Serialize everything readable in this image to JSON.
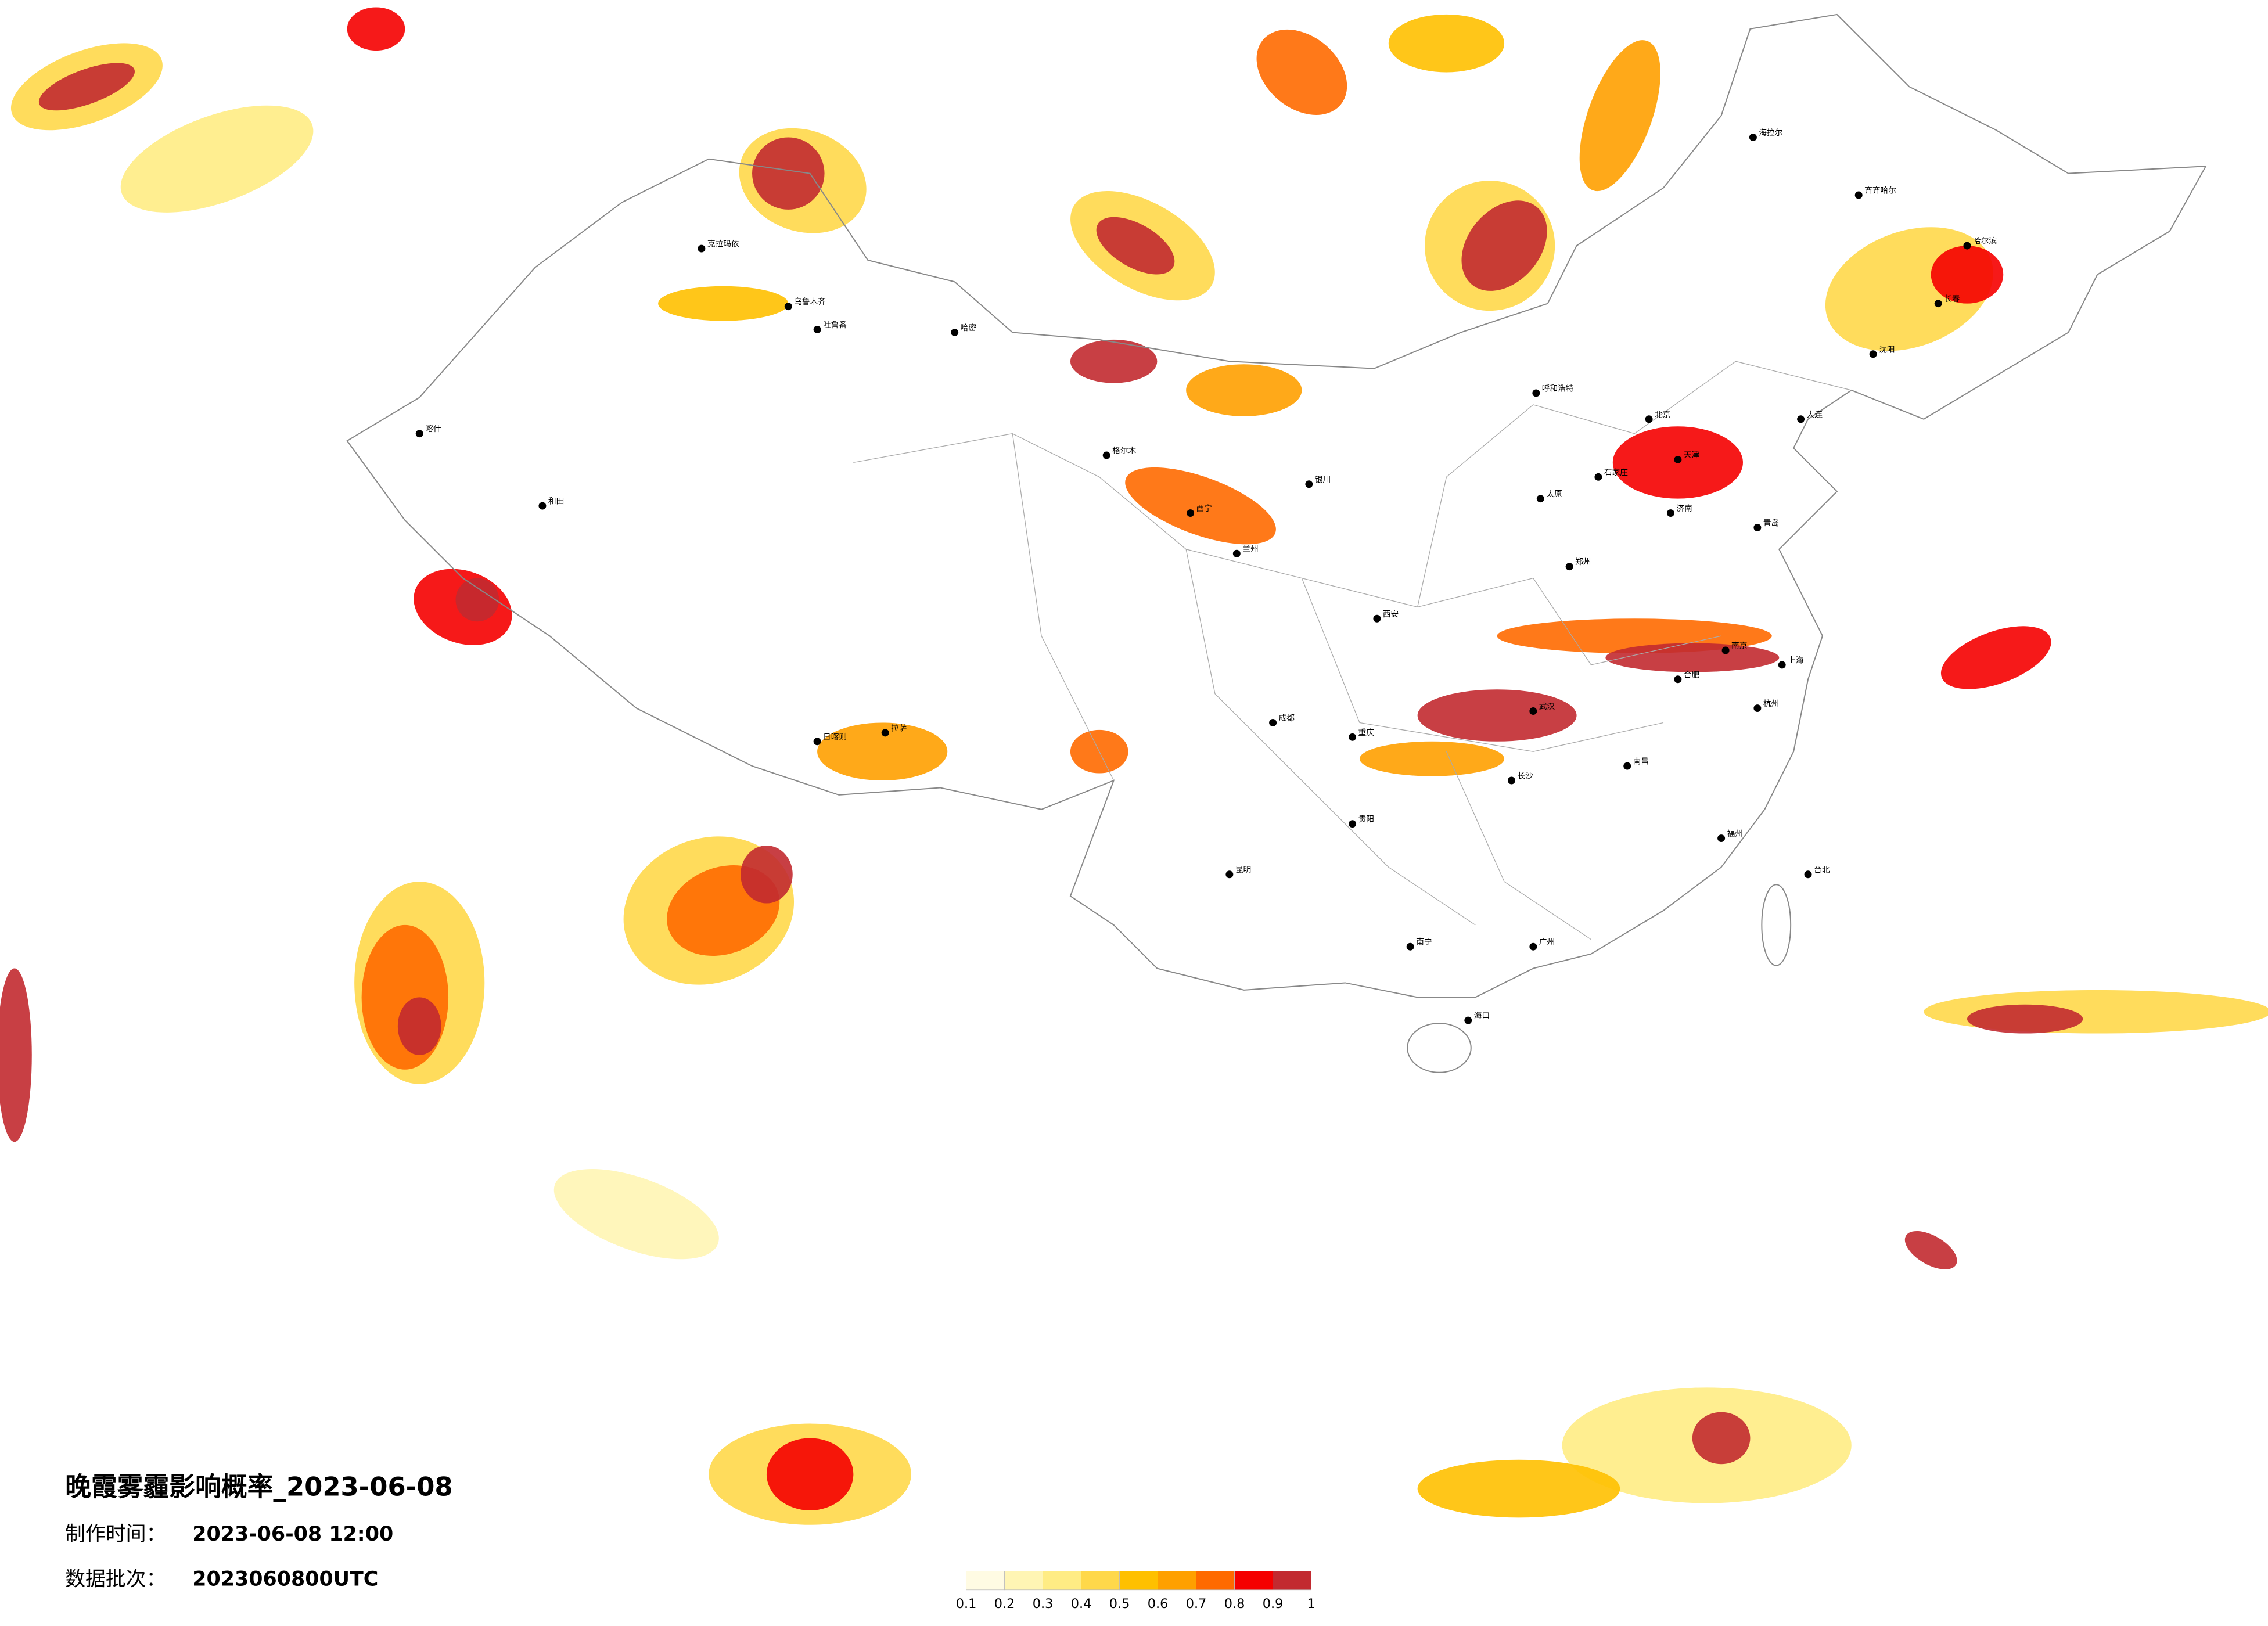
{
  "title": "晚霞雾霾影响概率_2023-06-08",
  "info": [
    {
      "label": "制作时间：",
      "value": "2023-06-08 12:00"
    },
    {
      "label": "数据批次：",
      "value": "2023060800UTC"
    }
  ],
  "legend": {
    "ticks": [
      0.1,
      0.2,
      0.3,
      0.4,
      0.5,
      0.6,
      0.7,
      0.8,
      0.9,
      1
    ],
    "colors": [
      "#fffbe3",
      "#fff5b4",
      "#ffec84",
      "#ffd84a",
      "#ffc000",
      "#ffa000",
      "#ff6a00",
      "#f50000",
      "#c22a30"
    ]
  },
  "cities": [
    "北京",
    "天津",
    "石家庄",
    "济南",
    "郑州",
    "太原",
    "呼和浩特",
    "上海",
    "南京",
    "杭州",
    "合肥",
    "武汉",
    "长沙",
    "南昌",
    "福州",
    "广州",
    "南宁",
    "海口",
    "重庆",
    "成都",
    "贵阳",
    "昆明",
    "拉萨",
    "日喀则",
    "西宁",
    "兰州",
    "银川",
    "西安",
    "乌鲁木齐",
    "克拉玛依",
    "吐鲁番",
    "哈密",
    "喀什",
    "和田",
    "格尔木",
    "海拉尔",
    "齐齐哈尔",
    "哈尔滨",
    "长春",
    "沈阳",
    "大连",
    "青岛",
    "台北"
  ]
}
